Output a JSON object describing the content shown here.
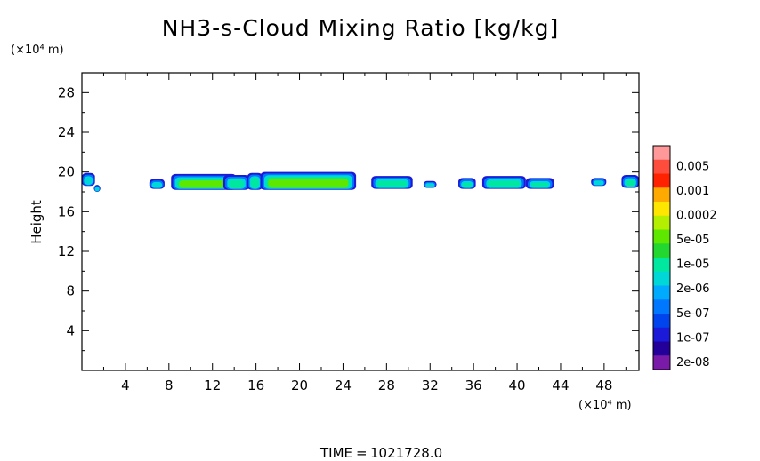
{
  "chart_data": {
    "type": "heatmap",
    "title": "NH3-s-Cloud Mixing Ratio [kg/kg]",
    "ylabel": "Height",
    "xlabel": "",
    "x_unit": "(×10⁴ m)",
    "y_unit": "(×10⁴ m)",
    "xlim": [
      0,
      51.2
    ],
    "ylim": [
      0,
      30
    ],
    "x_ticks": [
      4,
      8,
      12,
      16,
      20,
      24,
      28,
      32,
      36,
      40,
      44,
      48
    ],
    "y_ticks": [
      4,
      8,
      12,
      16,
      20,
      24,
      28
    ],
    "colorbar": {
      "labels": [
        "0.005",
        "0.001",
        "0.0002",
        "5e-05",
        "1e-05",
        "2e-06",
        "5e-07",
        "1e-07",
        "2e-08"
      ],
      "colors": [
        "#ff9999",
        "#ff4d3d",
        "#ff2200",
        "#ffaa00",
        "#ffe600",
        "#b4ee00",
        "#5ee800",
        "#22d830",
        "#00e8a0",
        "#00d8d8",
        "#00aaff",
        "#0077ff",
        "#0044ee",
        "#1a1ad8",
        "#220099",
        "#7a1aa8"
      ]
    },
    "cloud_cells": [
      {
        "x0": 0.0,
        "x1": 1.2,
        "ybot": 18.6,
        "ytop": 19.9,
        "level": 1
      },
      {
        "x0": 1.1,
        "x1": 1.7,
        "ybot": 18.0,
        "ytop": 18.7,
        "level": 1
      },
      {
        "x0": 6.2,
        "x1": 7.6,
        "ybot": 18.3,
        "ytop": 19.3,
        "level": 1
      },
      {
        "x0": 8.2,
        "x1": 14.2,
        "ybot": 18.2,
        "ytop": 19.8,
        "level": 3
      },
      {
        "x0": 13.0,
        "x1": 15.4,
        "ybot": 18.2,
        "ytop": 19.7,
        "level": 2
      },
      {
        "x0": 15.2,
        "x1": 16.6,
        "ybot": 18.2,
        "ytop": 19.9,
        "level": 2
      },
      {
        "x0": 16.4,
        "x1": 25.2,
        "ybot": 18.2,
        "ytop": 20.0,
        "level": 3
      },
      {
        "x0": 26.6,
        "x1": 30.4,
        "ybot": 18.3,
        "ytop": 19.6,
        "level": 2
      },
      {
        "x0": 31.4,
        "x1": 32.6,
        "ybot": 18.4,
        "ytop": 19.1,
        "level": 1
      },
      {
        "x0": 34.6,
        "x1": 36.2,
        "ybot": 18.3,
        "ytop": 19.4,
        "level": 2
      },
      {
        "x0": 36.8,
        "x1": 40.8,
        "ybot": 18.3,
        "ytop": 19.6,
        "level": 2
      },
      {
        "x0": 40.8,
        "x1": 43.4,
        "ybot": 18.3,
        "ytop": 19.4,
        "level": 2
      },
      {
        "x0": 46.8,
        "x1": 48.2,
        "ybot": 18.6,
        "ytop": 19.4,
        "level": 1
      },
      {
        "x0": 49.6,
        "x1": 51.2,
        "ybot": 18.4,
        "ytop": 19.7,
        "level": 2
      }
    ]
  },
  "footer": {
    "time_label": "TIME",
    "time_value": "1021728.0"
  }
}
